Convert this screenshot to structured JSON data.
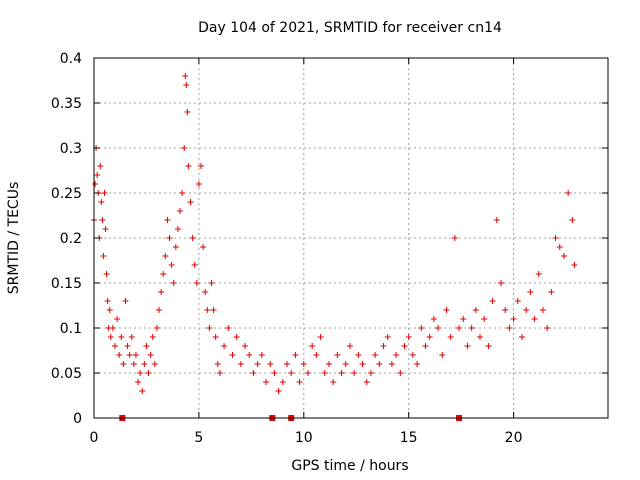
{
  "chart_data": {
    "type": "scatter",
    "title": "Day 104 of 2021, SRMTID for receiver cn14",
    "xlabel": "GPS time / hours",
    "ylabel": "SRMTID / TECUs",
    "xlim": [
      0,
      24.5
    ],
    "ylim": [
      0,
      0.4
    ],
    "x_ticks": [
      0,
      5,
      10,
      15,
      20
    ],
    "y_ticks": [
      0,
      0.05,
      0.1,
      0.15,
      0.2,
      0.25,
      0.3,
      0.35,
      0.4
    ],
    "x_tick_labels": [
      "0",
      "5",
      "10",
      "15",
      "20"
    ],
    "y_tick_labels": [
      "0",
      "0.05",
      "0.1",
      "0.15",
      "0.2",
      "0.25",
      "0.3",
      "0.35",
      "0.4"
    ],
    "grid": true,
    "marker": "+",
    "color": "#e00000",
    "zero_markers_x": [
      1.35,
      8.5,
      9.4,
      17.4
    ],
    "series": [
      {
        "name": "cn14",
        "x": [
          0.0,
          0.05,
          0.1,
          0.15,
          0.2,
          0.25,
          0.3,
          0.35,
          0.4,
          0.45,
          0.5,
          0.55,
          0.6,
          0.65,
          0.7,
          0.75,
          0.8,
          0.9,
          1.0,
          1.1,
          1.2,
          1.3,
          1.4,
          1.5,
          1.6,
          1.7,
          1.8,
          1.9,
          2.0,
          2.1,
          2.2,
          2.3,
          2.4,
          2.5,
          2.6,
          2.7,
          2.8,
          2.9,
          3.0,
          3.1,
          3.2,
          3.3,
          3.4,
          3.5,
          3.6,
          3.7,
          3.8,
          3.9,
          4.0,
          4.1,
          4.2,
          4.3,
          4.35,
          4.4,
          4.45,
          4.5,
          4.6,
          4.7,
          4.8,
          4.9,
          5.0,
          5.1,
          5.2,
          5.3,
          5.4,
          5.5,
          5.6,
          5.7,
          5.8,
          5.9,
          6.0,
          6.2,
          6.4,
          6.6,
          6.8,
          7.0,
          7.2,
          7.4,
          7.6,
          7.8,
          8.0,
          8.2,
          8.4,
          8.6,
          8.8,
          9.0,
          9.2,
          9.4,
          9.6,
          9.8,
          10.0,
          10.2,
          10.4,
          10.6,
          10.8,
          11.0,
          11.2,
          11.4,
          11.6,
          11.8,
          12.0,
          12.2,
          12.4,
          12.6,
          12.8,
          13.0,
          13.2,
          13.4,
          13.6,
          13.8,
          14.0,
          14.2,
          14.4,
          14.6,
          14.8,
          15.0,
          15.2,
          15.4,
          15.6,
          15.8,
          16.0,
          16.2,
          16.4,
          16.6,
          16.8,
          17.0,
          17.2,
          17.4,
          17.6,
          17.8,
          18.0,
          18.2,
          18.4,
          18.6,
          18.8,
          19.0,
          19.2,
          19.4,
          19.6,
          19.8,
          20.0,
          20.2,
          20.4,
          20.6,
          20.8,
          21.0,
          21.2,
          21.4,
          21.6,
          21.8,
          22.0,
          22.2,
          22.4,
          22.6,
          22.8,
          22.9
        ],
        "y": [
          0.22,
          0.26,
          0.3,
          0.27,
          0.25,
          0.2,
          0.28,
          0.24,
          0.22,
          0.18,
          0.25,
          0.21,
          0.16,
          0.13,
          0.1,
          0.12,
          0.09,
          0.1,
          0.08,
          0.11,
          0.07,
          0.09,
          0.06,
          0.13,
          0.08,
          0.07,
          0.09,
          0.06,
          0.07,
          0.04,
          0.05,
          0.03,
          0.06,
          0.08,
          0.05,
          0.07,
          0.09,
          0.06,
          0.1,
          0.12,
          0.14,
          0.16,
          0.18,
          0.22,
          0.2,
          0.17,
          0.15,
          0.19,
          0.21,
          0.23,
          0.25,
          0.3,
          0.38,
          0.37,
          0.34,
          0.28,
          0.24,
          0.2,
          0.17,
          0.15,
          0.26,
          0.28,
          0.19,
          0.14,
          0.12,
          0.1,
          0.15,
          0.12,
          0.09,
          0.06,
          0.05,
          0.08,
          0.1,
          0.07,
          0.09,
          0.06,
          0.08,
          0.07,
          0.05,
          0.06,
          0.07,
          0.04,
          0.06,
          0.05,
          0.03,
          0.04,
          0.06,
          0.05,
          0.07,
          0.04,
          0.06,
          0.05,
          0.08,
          0.07,
          0.09,
          0.05,
          0.06,
          0.04,
          0.07,
          0.05,
          0.06,
          0.08,
          0.05,
          0.07,
          0.06,
          0.04,
          0.05,
          0.07,
          0.06,
          0.08,
          0.09,
          0.06,
          0.07,
          0.05,
          0.08,
          0.09,
          0.07,
          0.06,
          0.1,
          0.08,
          0.09,
          0.11,
          0.1,
          0.07,
          0.12,
          0.09,
          0.2,
          0.1,
          0.11,
          0.08,
          0.1,
          0.12,
          0.09,
          0.11,
          0.08,
          0.13,
          0.22,
          0.15,
          0.12,
          0.1,
          0.11,
          0.13,
          0.09,
          0.12,
          0.14,
          0.11,
          0.16,
          0.12,
          0.1,
          0.14,
          0.2,
          0.19,
          0.18,
          0.25,
          0.22,
          0.17
        ]
      }
    ]
  }
}
